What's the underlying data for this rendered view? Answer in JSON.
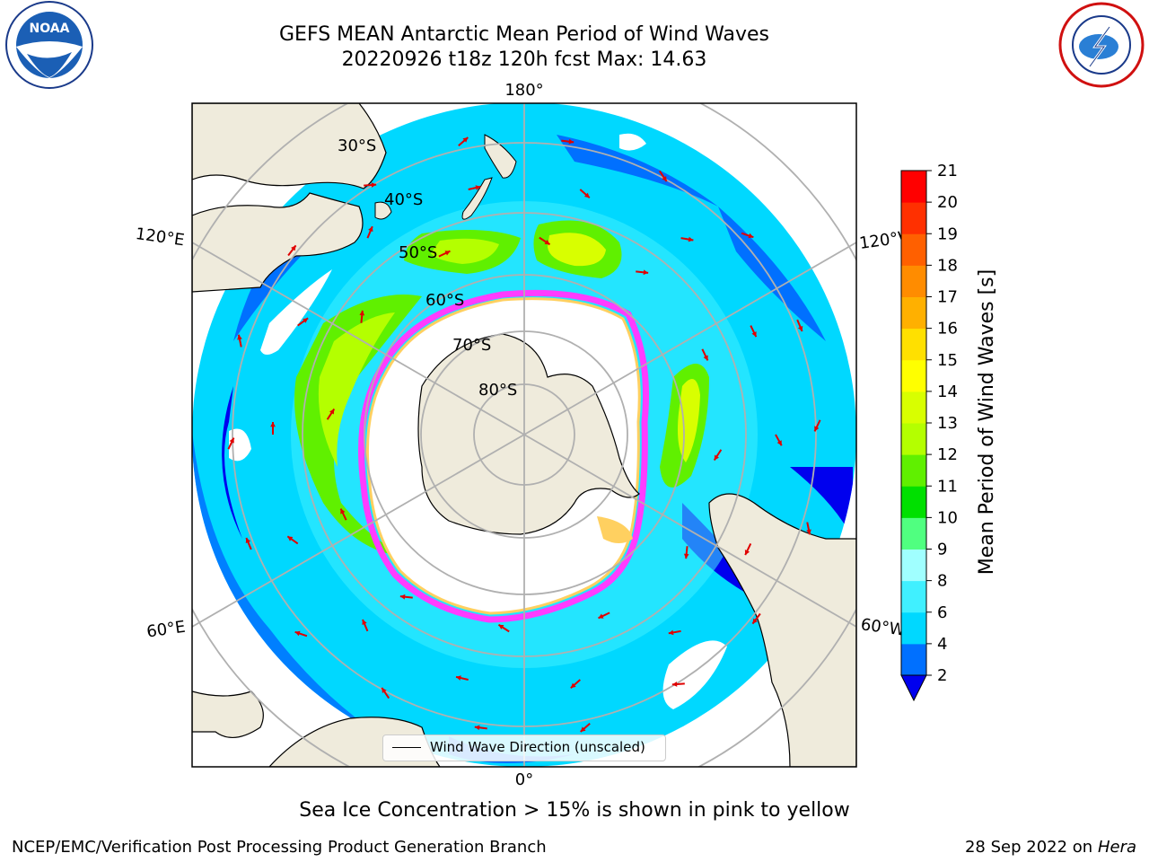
{
  "title": {
    "line1": "GEFS MEAN Antarctic Mean Period of Wind Waves",
    "line2": "20220926 t18z 120h fcst   Max: 14.63"
  },
  "logos": {
    "left_icon": "noaa-logo",
    "left_text": "NOAA",
    "left_ring_text": "NATIONAL OCEANIC AND ATMOSPHERIC ADMINISTRATION · U.S. DEPARTMENT OF COMMERCE",
    "right_icon": "nws-logo",
    "right_ring_text": "NATIONAL WEATHER SERVICE"
  },
  "map": {
    "projection": "south-polar-stereographic",
    "longitude_labels": {
      "top": "180°",
      "bottom": "0°",
      "upper_left": "120°E",
      "lower_left": "60°E",
      "upper_right": "120°W",
      "lower_right": "60°W"
    },
    "latitude_labels": [
      "30°S",
      "40°S",
      "50°S",
      "60°S",
      "70°S",
      "80°S"
    ],
    "grid": true,
    "colors": {
      "land": "#efebdc",
      "sea_ice_pink": "#ff3cff",
      "sea_ice_yellow": "#ffd060",
      "arrow": "#e00000",
      "grid": "#b0b0b0"
    },
    "legend": {
      "label": "Wind Wave Direction (unscaled)"
    }
  },
  "colorbar": {
    "label": "Mean Period of Wind Waves [s]",
    "ticks": [
      "2",
      "4",
      "6",
      "8",
      "9",
      "10",
      "11",
      "12",
      "13",
      "14",
      "15",
      "16",
      "17",
      "18",
      "19",
      "20",
      "21"
    ],
    "colors": [
      "#0000ee",
      "#0070ff",
      "#00d8ff",
      "#40f0ff",
      "#a0ffff",
      "#50ff80",
      "#00e000",
      "#60f000",
      "#b4ff00",
      "#d8ff00",
      "#ffff00",
      "#ffe000",
      "#ffb000",
      "#ff8c00",
      "#ff6000",
      "#ff3000",
      "#ff0000"
    ],
    "extend": "min"
  },
  "bottom_note": "Sea Ice Concentration > 15% is shown in pink to yellow",
  "footer": {
    "left": "NCEP/EMC/Verification Post Processing Product Generation Branch",
    "right_date": "28 Sep 2022 on",
    "right_machine": "Hera"
  }
}
